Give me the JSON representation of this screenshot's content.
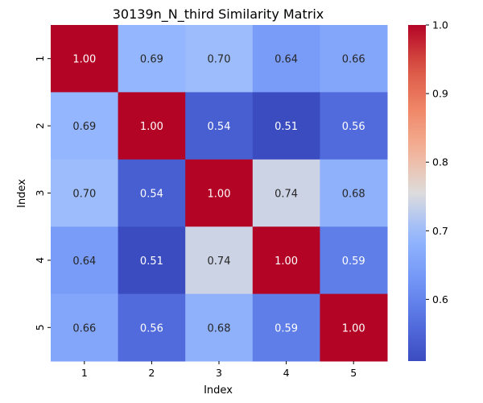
{
  "chart_data": {
    "type": "heatmap",
    "title": "30139n_N_third Similarity Matrix",
    "xlabel": "Index",
    "ylabel": "Index",
    "x_categories": [
      "1",
      "2",
      "3",
      "4",
      "5"
    ],
    "y_categories": [
      "1",
      "2",
      "3",
      "4",
      "5"
    ],
    "values": [
      [
        1.0,
        0.69,
        0.7,
        0.64,
        0.66
      ],
      [
        0.69,
        1.0,
        0.54,
        0.51,
        0.56
      ],
      [
        0.7,
        0.54,
        1.0,
        0.74,
        0.68
      ],
      [
        0.64,
        0.51,
        0.74,
        1.0,
        0.59
      ],
      [
        0.66,
        0.56,
        0.68,
        0.59,
        1.0
      ]
    ],
    "cell_label_format": "0.00",
    "colormap": "coolwarm",
    "colorbar": {
      "range": [
        0.51,
        1.0
      ],
      "ticks": [
        0.6,
        0.7,
        0.8,
        0.9,
        1.0
      ],
      "tick_labels": [
        "0.6",
        "0.7",
        "0.8",
        "0.9",
        "1.0"
      ],
      "placement": "right"
    },
    "grid": false
  }
}
